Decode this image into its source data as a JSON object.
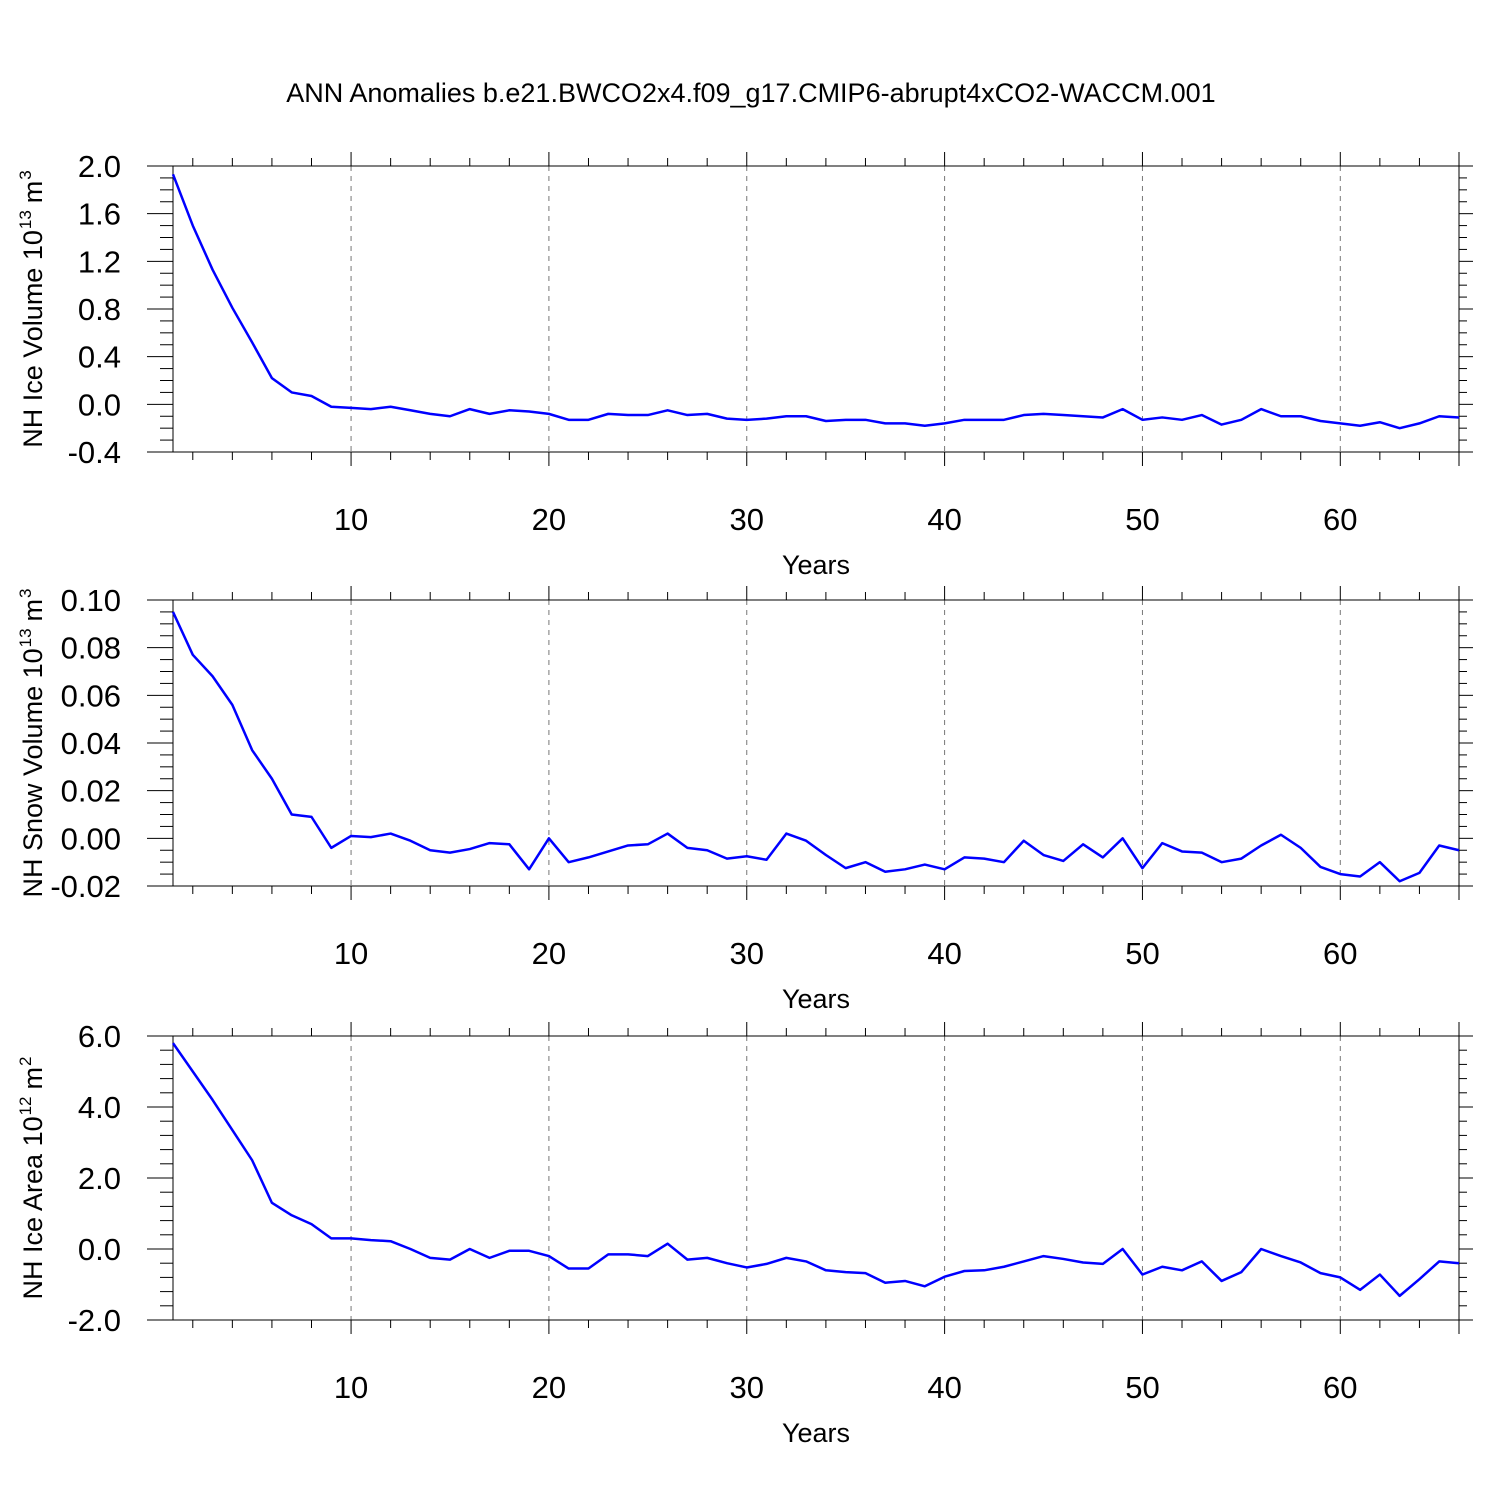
{
  "chart_data": [
    {
      "type": "line",
      "title": "ANN Anomalies b.e21.BWCO2x4.f09_g17.CMIP6-abrupt4xCO2-WACCM.001",
      "xlabel": "Years",
      "ylabel": [
        "NH Ice Volume 10",
        "13",
        "m",
        "3"
      ],
      "x": [
        1,
        2,
        3,
        4,
        5,
        6,
        7,
        8,
        9,
        10,
        11,
        12,
        13,
        14,
        15,
        16,
        17,
        18,
        19,
        20,
        21,
        22,
        23,
        24,
        25,
        26,
        27,
        28,
        29,
        30,
        31,
        32,
        33,
        34,
        35,
        36,
        37,
        38,
        39,
        40,
        41,
        42,
        43,
        44,
        45,
        46,
        47,
        48,
        49,
        50,
        51,
        52,
        53,
        54,
        55,
        56,
        57,
        58,
        59,
        60,
        61,
        62,
        63,
        64,
        65,
        66
      ],
      "series": [
        {
          "color": "#0000ff",
          "values": [
            1.93,
            1.5,
            1.13,
            0.81,
            0.52,
            0.22,
            0.1,
            0.07,
            -0.02,
            -0.03,
            -0.04,
            -0.02,
            -0.05,
            -0.08,
            -0.1,
            -0.04,
            -0.08,
            -0.05,
            -0.06,
            -0.08,
            -0.13,
            -0.13,
            -0.08,
            -0.09,
            -0.09,
            -0.05,
            -0.09,
            -0.08,
            -0.12,
            -0.13,
            -0.12,
            -0.1,
            -0.1,
            -0.14,
            -0.13,
            -0.13,
            -0.16,
            -0.16,
            -0.18,
            -0.16,
            -0.13,
            -0.13,
            -0.13,
            -0.09,
            -0.08,
            -0.09,
            -0.1,
            -0.11,
            -0.04,
            -0.13,
            -0.11,
            -0.13,
            -0.09,
            -0.17,
            -0.13,
            -0.04,
            -0.1,
            -0.1,
            -0.14,
            -0.16,
            -0.18,
            -0.15,
            -0.2,
            -0.16,
            -0.1,
            -0.11
          ]
        }
      ],
      "xlim": [
        1,
        66
      ],
      "xticks": [
        10,
        20,
        30,
        40,
        50,
        60
      ],
      "xminor_divisions": 5,
      "ylim": [
        -0.4,
        2.0
      ],
      "yticks": [
        {
          "value": 2,
          "label": "2.0"
        },
        1.6,
        1.2,
        0.8,
        0.4,
        {
          "value": 0,
          "label": "0.0"
        },
        -0.4
      ],
      "yminor_divisions": 4,
      "xgrid": "dashed"
    },
    {
      "type": "line",
      "xlabel": "Years",
      "ylabel": [
        "NH Snow Volume 10",
        "13",
        "m",
        "3"
      ],
      "x": [
        1,
        2,
        3,
        4,
        5,
        6,
        7,
        8,
        9,
        10,
        11,
        12,
        13,
        14,
        15,
        16,
        17,
        18,
        19,
        20,
        21,
        22,
        23,
        24,
        25,
        26,
        27,
        28,
        29,
        30,
        31,
        32,
        33,
        34,
        35,
        36,
        37,
        38,
        39,
        40,
        41,
        42,
        43,
        44,
        45,
        46,
        47,
        48,
        49,
        50,
        51,
        52,
        53,
        54,
        55,
        56,
        57,
        58,
        59,
        60,
        61,
        62,
        63,
        64,
        65,
        66
      ],
      "series": [
        {
          "color": "#0000ff",
          "values": [
            0.095,
            0.077,
            0.068,
            0.056,
            0.037,
            0.025,
            0.01,
            0.009,
            -0.004,
            0.001,
            0.0005,
            0.002,
            -0.001,
            -0.005,
            -0.006,
            -0.0045,
            -0.002,
            -0.0025,
            -0.013,
            0,
            -0.01,
            -0.008,
            -0.0055,
            -0.003,
            -0.0025,
            0.002,
            -0.004,
            -0.005,
            -0.0085,
            -0.0075,
            -0.009,
            0.002,
            -0.001,
            -0.007,
            -0.0125,
            -0.01,
            -0.014,
            -0.013,
            -0.011,
            -0.013,
            -0.008,
            -0.0085,
            -0.01,
            -0.001,
            -0.007,
            -0.0095,
            -0.0025,
            -0.008,
            0,
            -0.0125,
            -0.002,
            -0.0055,
            -0.006,
            -0.01,
            -0.0085,
            -0.003,
            0.0015,
            -0.004,
            -0.012,
            -0.015,
            -0.016,
            -0.01,
            -0.018,
            -0.0145,
            -0.003,
            -0.005
          ]
        }
      ],
      "xlim": [
        1,
        66
      ],
      "xticks": [
        10,
        20,
        30,
        40,
        50,
        60
      ],
      "xminor_divisions": 5,
      "ylim": [
        -0.02,
        0.1
      ],
      "yticks": [
        {
          "value": 0.1,
          "label": "0.10"
        },
        0.08,
        0.06,
        0.04,
        0.02,
        {
          "value": 0,
          "label": "0.00"
        },
        -0.02
      ],
      "yminor_divisions": 4,
      "xgrid": "dashed"
    },
    {
      "type": "line",
      "xlabel": "Years",
      "ylabel": [
        "NH Ice Area 10",
        "12",
        "m",
        "2"
      ],
      "x": [
        1,
        2,
        3,
        4,
        5,
        6,
        7,
        8,
        9,
        10,
        11,
        12,
        13,
        14,
        15,
        16,
        17,
        18,
        19,
        20,
        21,
        22,
        23,
        24,
        25,
        26,
        27,
        28,
        29,
        30,
        31,
        32,
        33,
        34,
        35,
        36,
        37,
        38,
        39,
        40,
        41,
        42,
        43,
        44,
        45,
        46,
        47,
        48,
        49,
        50,
        51,
        52,
        53,
        54,
        55,
        56,
        57,
        58,
        59,
        60,
        61,
        62,
        63,
        64,
        65,
        66
      ],
      "series": [
        {
          "color": "#0000ff",
          "values": [
            5.8,
            5.0,
            4.2,
            3.35,
            2.5,
            1.3,
            0.95,
            0.7,
            0.3,
            0.3,
            0.25,
            0.22,
            0,
            -0.25,
            -0.3,
            0,
            -0.25,
            -0.05,
            -0.05,
            -0.2,
            -0.55,
            -0.55,
            -0.15,
            -0.15,
            -0.2,
            0.15,
            -0.3,
            -0.25,
            -0.4,
            -0.52,
            -0.42,
            -0.25,
            -0.35,
            -0.6,
            -0.65,
            -0.68,
            -0.95,
            -0.9,
            -1.05,
            -0.78,
            -0.62,
            -0.6,
            -0.5,
            -0.35,
            -0.2,
            -0.28,
            -0.38,
            -0.42,
            0,
            -0.72,
            -0.5,
            -0.6,
            -0.35,
            -0.9,
            -0.65,
            0,
            -0.2,
            -0.38,
            -0.68,
            -0.8,
            -1.15,
            -0.72,
            -1.32,
            -0.85,
            -0.35,
            -0.4
          ]
        }
      ],
      "xlim": [
        1,
        66
      ],
      "xticks": [
        10,
        20,
        30,
        40,
        50,
        60
      ],
      "xminor_divisions": 5,
      "ylim": [
        -2,
        6
      ],
      "yticks": [
        {
          "value": 6,
          "label": "6.0"
        },
        {
          "value": 4,
          "label": "4.0"
        },
        {
          "value": 2,
          "label": "2.0"
        },
        {
          "value": 0,
          "label": "0.0"
        },
        {
          "value": -2,
          "label": "-2.0"
        }
      ],
      "yminor_divisions": 5,
      "xgrid": "dashed"
    }
  ]
}
